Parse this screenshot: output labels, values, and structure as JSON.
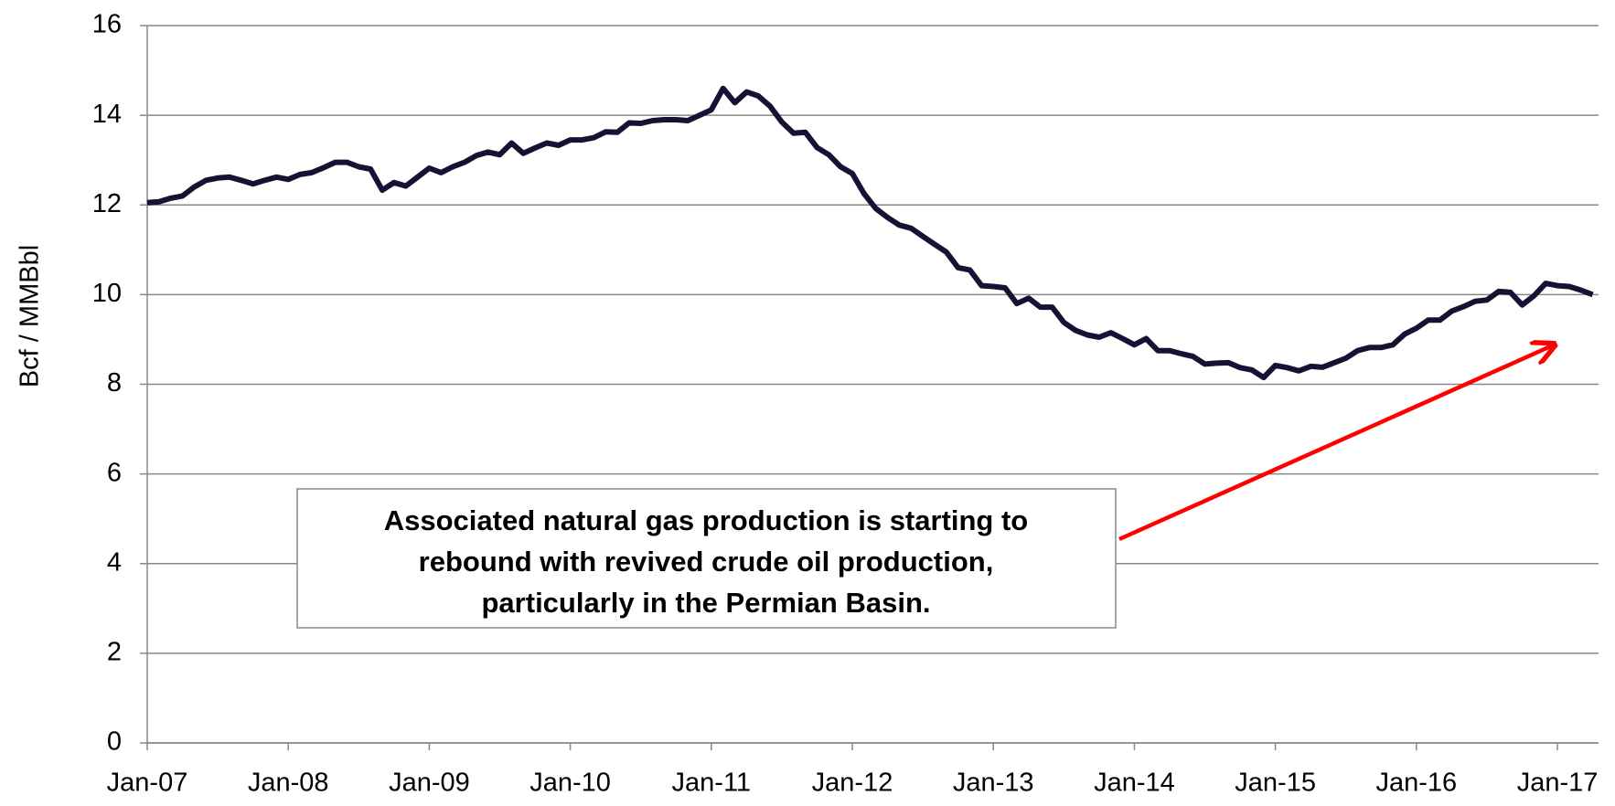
{
  "chart_data": {
    "type": "line",
    "y_label": "Bcf / MMBbl",
    "annotation": [
      "Associated natural gas production is starting to",
      "rebound with revived crude oil production,",
      "particularly in the Permian Basin."
    ],
    "categories": [
      "Jan-07",
      null,
      null,
      null,
      null,
      null,
      null,
      null,
      null,
      null,
      null,
      null,
      "Jan-08",
      null,
      null,
      null,
      null,
      null,
      null,
      null,
      null,
      null,
      null,
      null,
      "Jan-09",
      null,
      null,
      null,
      null,
      null,
      null,
      null,
      null,
      null,
      null,
      null,
      "Jan-10",
      null,
      null,
      null,
      null,
      null,
      null,
      null,
      null,
      null,
      null,
      null,
      "Jan-11",
      null,
      null,
      null,
      null,
      null,
      null,
      null,
      null,
      null,
      null,
      null,
      "Jan-12",
      null,
      null,
      null,
      null,
      null,
      null,
      null,
      null,
      null,
      null,
      null,
      "Jan-13",
      null,
      null,
      null,
      null,
      null,
      null,
      null,
      null,
      null,
      null,
      null,
      "Jan-14",
      null,
      null,
      null,
      null,
      null,
      null,
      null,
      null,
      null,
      null,
      null,
      "Jan-15",
      null,
      null,
      null,
      null,
      null,
      null,
      null,
      null,
      null,
      null,
      null,
      "Jan-16",
      null,
      null,
      null,
      null,
      null,
      null,
      null,
      null,
      null,
      null,
      null,
      "Jan-17",
      null,
      null,
      null
    ],
    "series": [
      {
        "color": "#1a1033",
        "values": [
          12.05,
          12.07,
          12.15,
          12.2,
          12.4,
          12.55,
          12.6,
          12.62,
          12.55,
          12.47,
          12.55,
          12.62,
          12.57,
          12.68,
          12.72,
          12.83,
          12.95,
          12.95,
          12.85,
          12.8,
          12.33,
          12.5,
          12.42,
          12.62,
          12.82,
          12.72,
          12.85,
          12.95,
          13.1,
          13.18,
          13.12,
          13.38,
          13.15,
          13.27,
          13.38,
          13.33,
          13.45,
          13.45,
          13.5,
          13.63,
          13.62,
          13.83,
          13.82,
          13.88,
          13.9,
          13.9,
          13.88,
          14.0,
          14.12,
          14.6,
          14.28,
          14.52,
          14.43,
          14.2,
          13.85,
          13.6,
          13.62,
          13.28,
          13.12,
          12.85,
          12.7,
          12.25,
          11.92,
          11.72,
          11.55,
          11.48,
          11.3,
          11.12,
          10.95,
          10.6,
          10.55,
          10.2,
          10.18,
          10.15,
          9.8,
          9.92,
          9.72,
          9.72,
          9.38,
          9.2,
          9.1,
          9.05,
          9.15,
          9.02,
          8.88,
          9.02,
          8.75,
          8.75,
          8.68,
          8.62,
          8.45,
          8.47,
          8.48,
          8.37,
          8.32,
          8.15,
          8.42,
          8.37,
          8.3,
          8.4,
          8.38,
          8.48,
          8.58,
          8.75,
          8.82,
          8.82,
          8.88,
          9.12,
          9.25,
          9.43,
          9.43,
          9.63,
          9.73,
          9.85,
          9.88,
          10.07,
          10.05,
          9.77,
          9.97,
          10.25,
          10.2,
          10.18,
          10.1,
          10.0
        ]
      }
    ],
    "ylim": [
      0,
      16
    ],
    "yticks": [
      0,
      2,
      4,
      6,
      8,
      10,
      12,
      14,
      16
    ],
    "grid": true
  }
}
